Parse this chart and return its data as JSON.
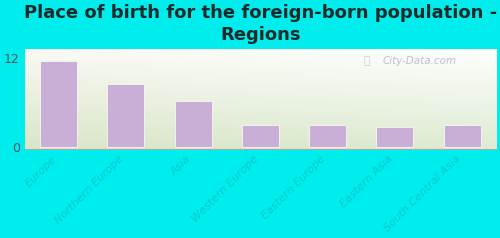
{
  "title": "Place of birth for the foreign-born population -\nRegions",
  "categories": [
    "Europe",
    "Northern Europe",
    "Asia",
    "Western Europe",
    "Eastern Europe",
    "Eastern Asia",
    "South Central Asia"
  ],
  "values": [
    11.5,
    8.5,
    6.2,
    2.9,
    2.9,
    2.7,
    2.9
  ],
  "bar_color": "#c9aed6",
  "bar_edge_color": "#ffffff",
  "background_outer": "#00eded",
  "background_inner_topleft": "#e6edd6",
  "background_inner_topright": "#f5f8ee",
  "background_inner_bottom": "#c8e8c8",
  "yticks": [
    0,
    12
  ],
  "ylim": [
    -0.3,
    13.2
  ],
  "title_fontsize": 13,
  "title_color": "#1a2a2a",
  "watermark": "City-Data.com",
  "xlabel_fontsize": 8,
  "tick_label_color": "#00cccc",
  "ytick_color": "#555555"
}
